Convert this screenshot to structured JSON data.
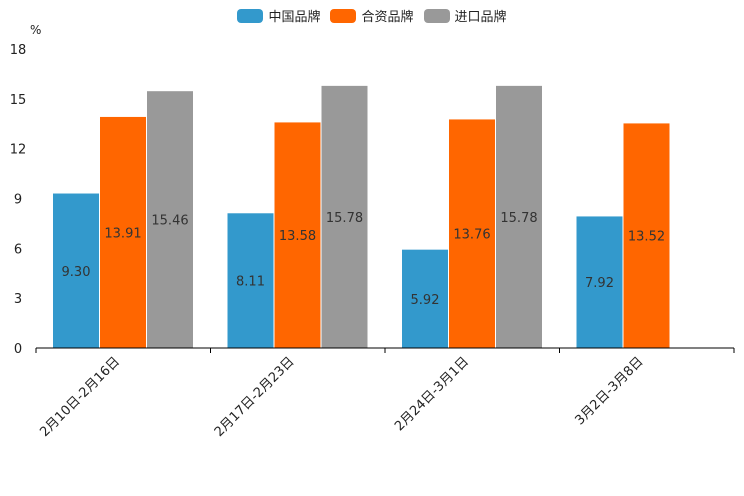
{
  "chart_data": {
    "type": "bar",
    "title": "",
    "ylabel": "%",
    "xlabel": "",
    "ylim": [
      0,
      18
    ],
    "yticks": [
      0,
      3,
      6,
      9,
      12,
      15,
      18
    ],
    "categories": [
      "2月10日-2月16日",
      "2月17日-2月23日",
      "2月24日-3月1日",
      "3月2日-3月8日"
    ],
    "series": [
      {
        "name": "中国品牌",
        "color": "#3399cc",
        "values": [
          9.3,
          8.11,
          5.92,
          7.92
        ]
      },
      {
        "name": "合资品牌",
        "color": "#ff6600",
        "values": [
          13.91,
          13.58,
          13.76,
          13.52
        ]
      },
      {
        "name": "进口品牌",
        "color": "#999999",
        "values": [
          15.46,
          15.78,
          15.78,
          null
        ]
      }
    ],
    "legend_position": "top"
  }
}
